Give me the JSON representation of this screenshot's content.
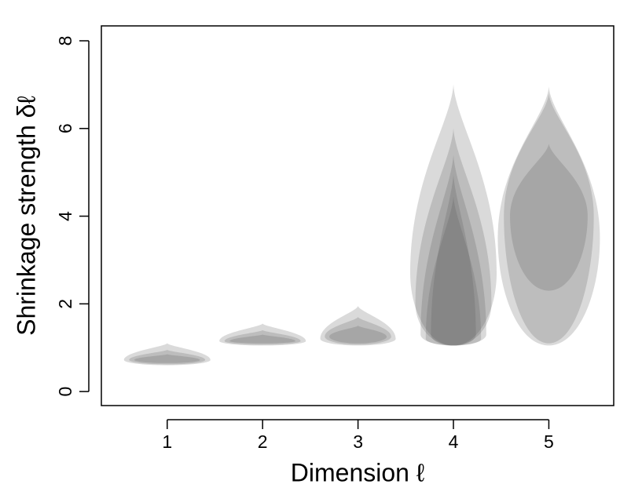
{
  "chart_data": {
    "type": "violin",
    "x_label": "Dimension ℓ",
    "y_label": "Shrinkage strength δℓ",
    "x": [
      1,
      2,
      3,
      4,
      5
    ],
    "xlim": [
      0.31,
      5.68
    ],
    "xticks": [
      1,
      2,
      3,
      4,
      5
    ],
    "ylim": [
      -0.32,
      8.34
    ],
    "yticks": [
      0,
      2,
      4,
      6,
      8
    ],
    "color": "#555555",
    "violins": [
      {
        "layers": [
          [
            0.6,
            0.72,
            1.1
          ],
          [
            0.62,
            0.72,
            0.95
          ],
          [
            0.65,
            0.72,
            0.85
          ]
        ]
      },
      {
        "layers": [
          [
            1.05,
            1.15,
            1.55
          ],
          [
            1.07,
            1.15,
            1.4
          ],
          [
            1.1,
            1.15,
            1.3
          ]
        ]
      },
      {
        "layers": [
          [
            1.05,
            1.2,
            1.95
          ],
          [
            1.07,
            1.25,
            1.7
          ],
          [
            1.1,
            1.25,
            1.5
          ]
        ]
      },
      {
        "layers": [
          [
            1.05,
            2.7,
            7.0
          ],
          [
            1.05,
            2.0,
            6.0
          ],
          [
            1.05,
            1.3,
            5.4
          ],
          [
            1.05,
            1.2,
            4.45
          ],
          [
            1.05,
            1.3,
            4.95
          ]
        ]
      },
      {
        "layers": [
          [
            1.05,
            3.5,
            6.95
          ],
          [
            1.1,
            4.0,
            6.8
          ],
          [
            2.3,
            4.0,
            5.65
          ]
        ]
      }
    ]
  }
}
